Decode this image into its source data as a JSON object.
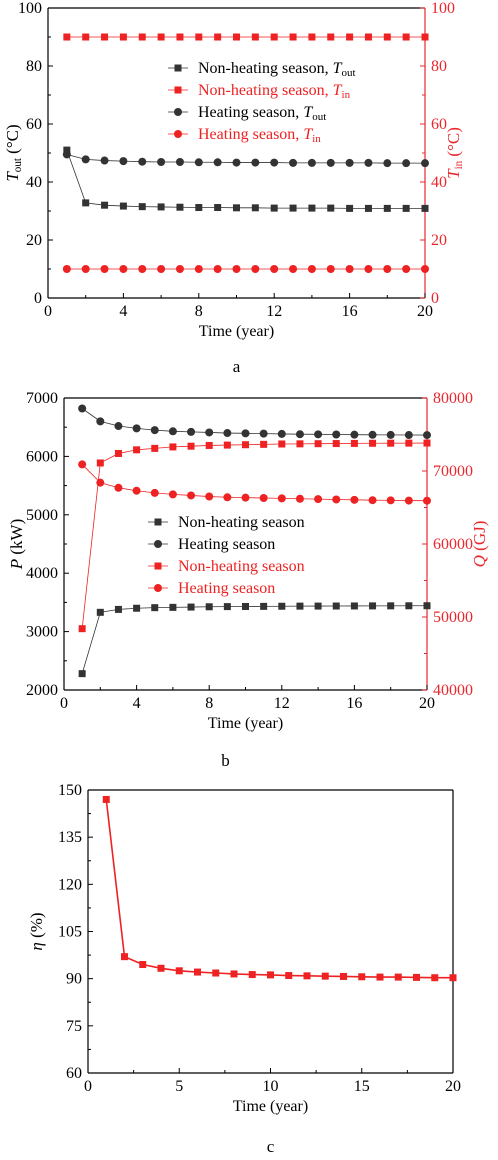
{
  "colors": {
    "black_series": "#333333",
    "red_series": "#ee2222",
    "red_axis": "#e8282e",
    "axis": "#000000"
  },
  "chart_data": [
    {
      "panel_label": "a",
      "type": "scatter",
      "xlabel": "Time (year)",
      "ylabel_left": {
        "var": "T",
        "sub": "out",
        "unit": " (°C)"
      },
      "ylabel_right": {
        "var": "T",
        "sub": "in",
        "unit": " (°C)"
      },
      "xlim": [
        0,
        20
      ],
      "ylim_left": [
        0,
        100
      ],
      "ylim_right": [
        0,
        100
      ],
      "xticks": [
        "0",
        "4",
        "8",
        "12",
        "16",
        "20"
      ],
      "yticks_left": [
        "0",
        "20",
        "40",
        "60",
        "80",
        "100"
      ],
      "yticks_right": [
        "0",
        "20",
        "40",
        "60",
        "80",
        "100"
      ],
      "legend": "upper-right-center",
      "x": [
        1,
        2,
        3,
        4,
        5,
        6,
        7,
        8,
        9,
        10,
        11,
        12,
        13,
        14,
        15,
        16,
        17,
        18,
        19,
        20
      ],
      "series": [
        {
          "name": "Non-heating season, ",
          "sub": "out",
          "axis": "left",
          "marker": "square",
          "color": "#333333",
          "values": [
            51,
            32.8,
            32,
            31.7,
            31.5,
            31.4,
            31.3,
            31.2,
            31.2,
            31.1,
            31.1,
            31,
            31,
            31,
            31,
            30.9,
            30.9,
            30.9,
            30.9,
            30.9
          ]
        },
        {
          "name": "Non-heating season, ",
          "sub": "in",
          "axis": "right",
          "marker": "square",
          "color": "#ee2222",
          "values": [
            90,
            90,
            90,
            90,
            90,
            90,
            90,
            90,
            90,
            90,
            90,
            90,
            90,
            90,
            90,
            90,
            90,
            90,
            90,
            90
          ]
        },
        {
          "name": "Heating season, ",
          "sub": "out",
          "axis": "left",
          "marker": "circle",
          "color": "#333333",
          "values": [
            49.5,
            47.8,
            47.4,
            47.2,
            47,
            46.9,
            46.9,
            46.8,
            46.8,
            46.7,
            46.7,
            46.7,
            46.6,
            46.6,
            46.6,
            46.6,
            46.6,
            46.5,
            46.5,
            46.5
          ]
        },
        {
          "name": "Heating season, ",
          "sub": "in",
          "axis": "right",
          "marker": "circle",
          "color": "#ee2222",
          "values": [
            10,
            10,
            10,
            10,
            10,
            10,
            10,
            10,
            10,
            10,
            10,
            10,
            10,
            10,
            10,
            10,
            10,
            10,
            10,
            10
          ]
        }
      ]
    },
    {
      "panel_label": "b",
      "type": "scatter",
      "xlabel": "Time (year)",
      "ylabel_left": {
        "var": "P",
        "sub": "",
        "unit": " (kW)"
      },
      "ylabel_right": {
        "var": "Q",
        "sub": "",
        "unit": " (GJ)"
      },
      "xlim": [
        0,
        20
      ],
      "ylim_left": [
        2000,
        7000
      ],
      "ylim_right": [
        40000,
        80000
      ],
      "xticks": [
        "0",
        "4",
        "8",
        "12",
        "16",
        "20"
      ],
      "yticks_left": [
        "2000",
        "3000",
        "4000",
        "5000",
        "6000",
        "7000"
      ],
      "yticks_right": [
        "40000",
        "50000",
        "60000",
        "70000",
        "80000"
      ],
      "legend": "center-left",
      "x": [
        1,
        2,
        3,
        4,
        5,
        6,
        7,
        8,
        9,
        10,
        11,
        12,
        13,
        14,
        15,
        16,
        17,
        18,
        19,
        20
      ],
      "series": [
        {
          "name": "Non-heating season",
          "sub": "",
          "axis": "left",
          "marker": "square",
          "color": "#333333",
          "values": [
            2280,
            3330,
            3380,
            3400,
            3410,
            3415,
            3420,
            3425,
            3428,
            3430,
            3432,
            3434,
            3436,
            3437,
            3438,
            3439,
            3440,
            3441,
            3442,
            3443
          ]
        },
        {
          "name": "Heating season",
          "sub": "",
          "axis": "left",
          "marker": "circle",
          "color": "#333333",
          "values": [
            6820,
            6600,
            6520,
            6480,
            6450,
            6430,
            6420,
            6410,
            6400,
            6395,
            6390,
            6385,
            6380,
            6378,
            6375,
            6372,
            6370,
            6368,
            6366,
            6365
          ]
        },
        {
          "name": "Non-heating season",
          "sub": "",
          "axis": "right",
          "marker": "square",
          "color": "#ee2222",
          "values": [
            48400,
            71100,
            72400,
            72900,
            73100,
            73300,
            73400,
            73500,
            73550,
            73600,
            73650,
            73700,
            73720,
            73740,
            73760,
            73780,
            73800,
            73810,
            73820,
            73830
          ]
        },
        {
          "name": "Heating season",
          "sub": "",
          "axis": "right",
          "marker": "circle",
          "color": "#ee2222",
          "values": [
            70900,
            68400,
            67700,
            67300,
            67000,
            66800,
            66650,
            66500,
            66400,
            66350,
            66300,
            66250,
            66200,
            66150,
            66100,
            66050,
            66000,
            65980,
            65950,
            65930
          ]
        }
      ]
    },
    {
      "panel_label": "c",
      "type": "line",
      "xlabel": "Time (year)",
      "ylabel_left": {
        "var": "η",
        "sub": "",
        "unit": " (%)"
      },
      "xlim": [
        0,
        20
      ],
      "ylim_left": [
        60,
        150
      ],
      "xticks": [
        "0",
        "5",
        "10",
        "15",
        "20"
      ],
      "yticks_left": [
        "60",
        "75",
        "90",
        "105",
        "120",
        "135",
        "150"
      ],
      "x": [
        1,
        2,
        3,
        4,
        5,
        6,
        7,
        8,
        9,
        10,
        11,
        12,
        13,
        14,
        15,
        16,
        17,
        18,
        19,
        20
      ],
      "series": [
        {
          "name": "",
          "sub": "",
          "axis": "left",
          "marker": "square",
          "color": "#ee2222",
          "values": [
            147,
            97,
            94.5,
            93.3,
            92.5,
            92.1,
            91.8,
            91.5,
            91.3,
            91.2,
            91,
            90.9,
            90.8,
            90.7,
            90.6,
            90.5,
            90.5,
            90.4,
            90.3,
            90.3
          ]
        }
      ]
    }
  ]
}
